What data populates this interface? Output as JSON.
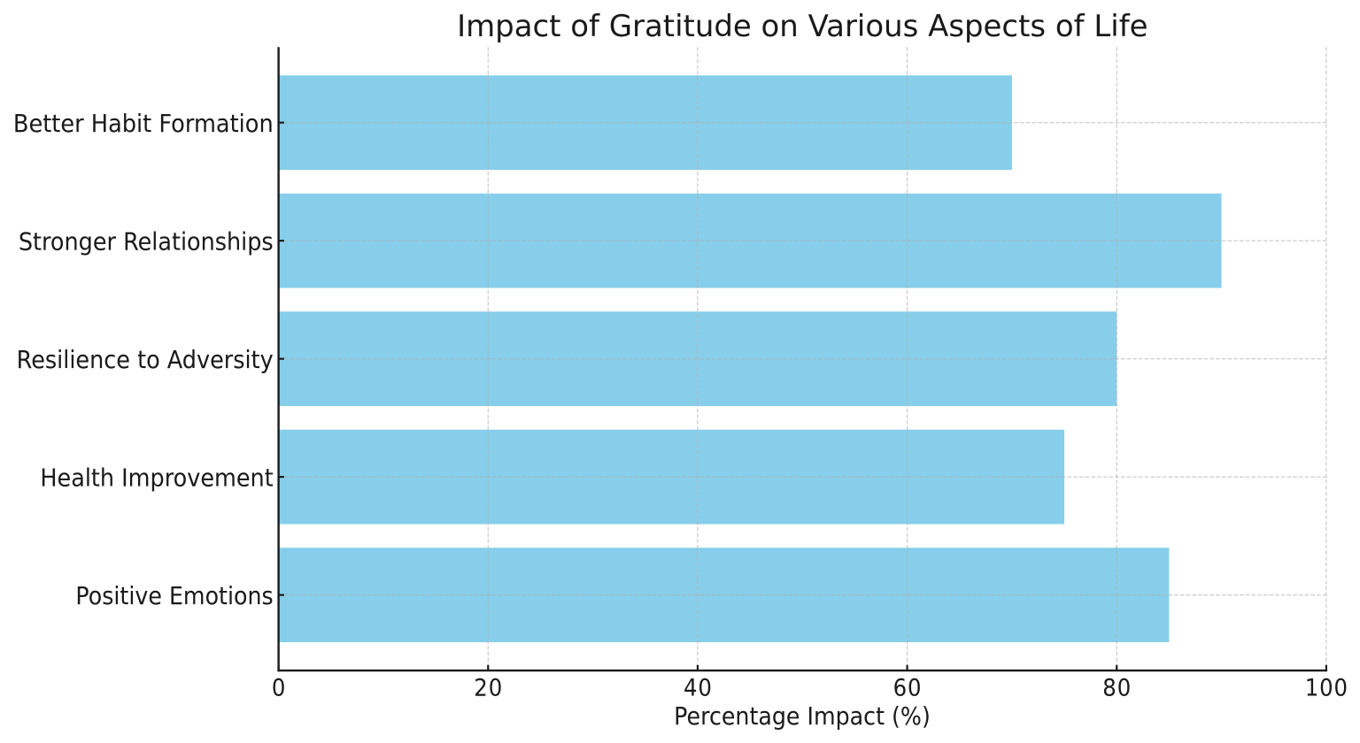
{
  "page": {
    "background": "#ffffff"
  },
  "chart_data": {
    "type": "bar",
    "orientation": "horizontal",
    "title": "Impact of Gratitude on Various Aspects of Life",
    "xlabel": "Percentage Impact (%)",
    "categories": [
      "Better Habit Formation",
      "Stronger Relationships",
      "Resilience to Adversity",
      "Health Improvement",
      "Positive Emotions"
    ],
    "values": [
      70,
      90,
      80,
      75,
      85
    ],
    "xlim": [
      0,
      100
    ],
    "xticks": [
      0,
      20,
      40,
      60,
      80,
      100
    ],
    "xtick_labels": [
      "0",
      "20",
      "40",
      "60",
      "80",
      "100"
    ],
    "grid": true,
    "grid_style": "dashed",
    "legend": false,
    "bar_color": "#87CEEB",
    "grid_color": "#b0b0b0",
    "axis_color": "#1a1a1a",
    "text_color": "#1a1a1a"
  }
}
